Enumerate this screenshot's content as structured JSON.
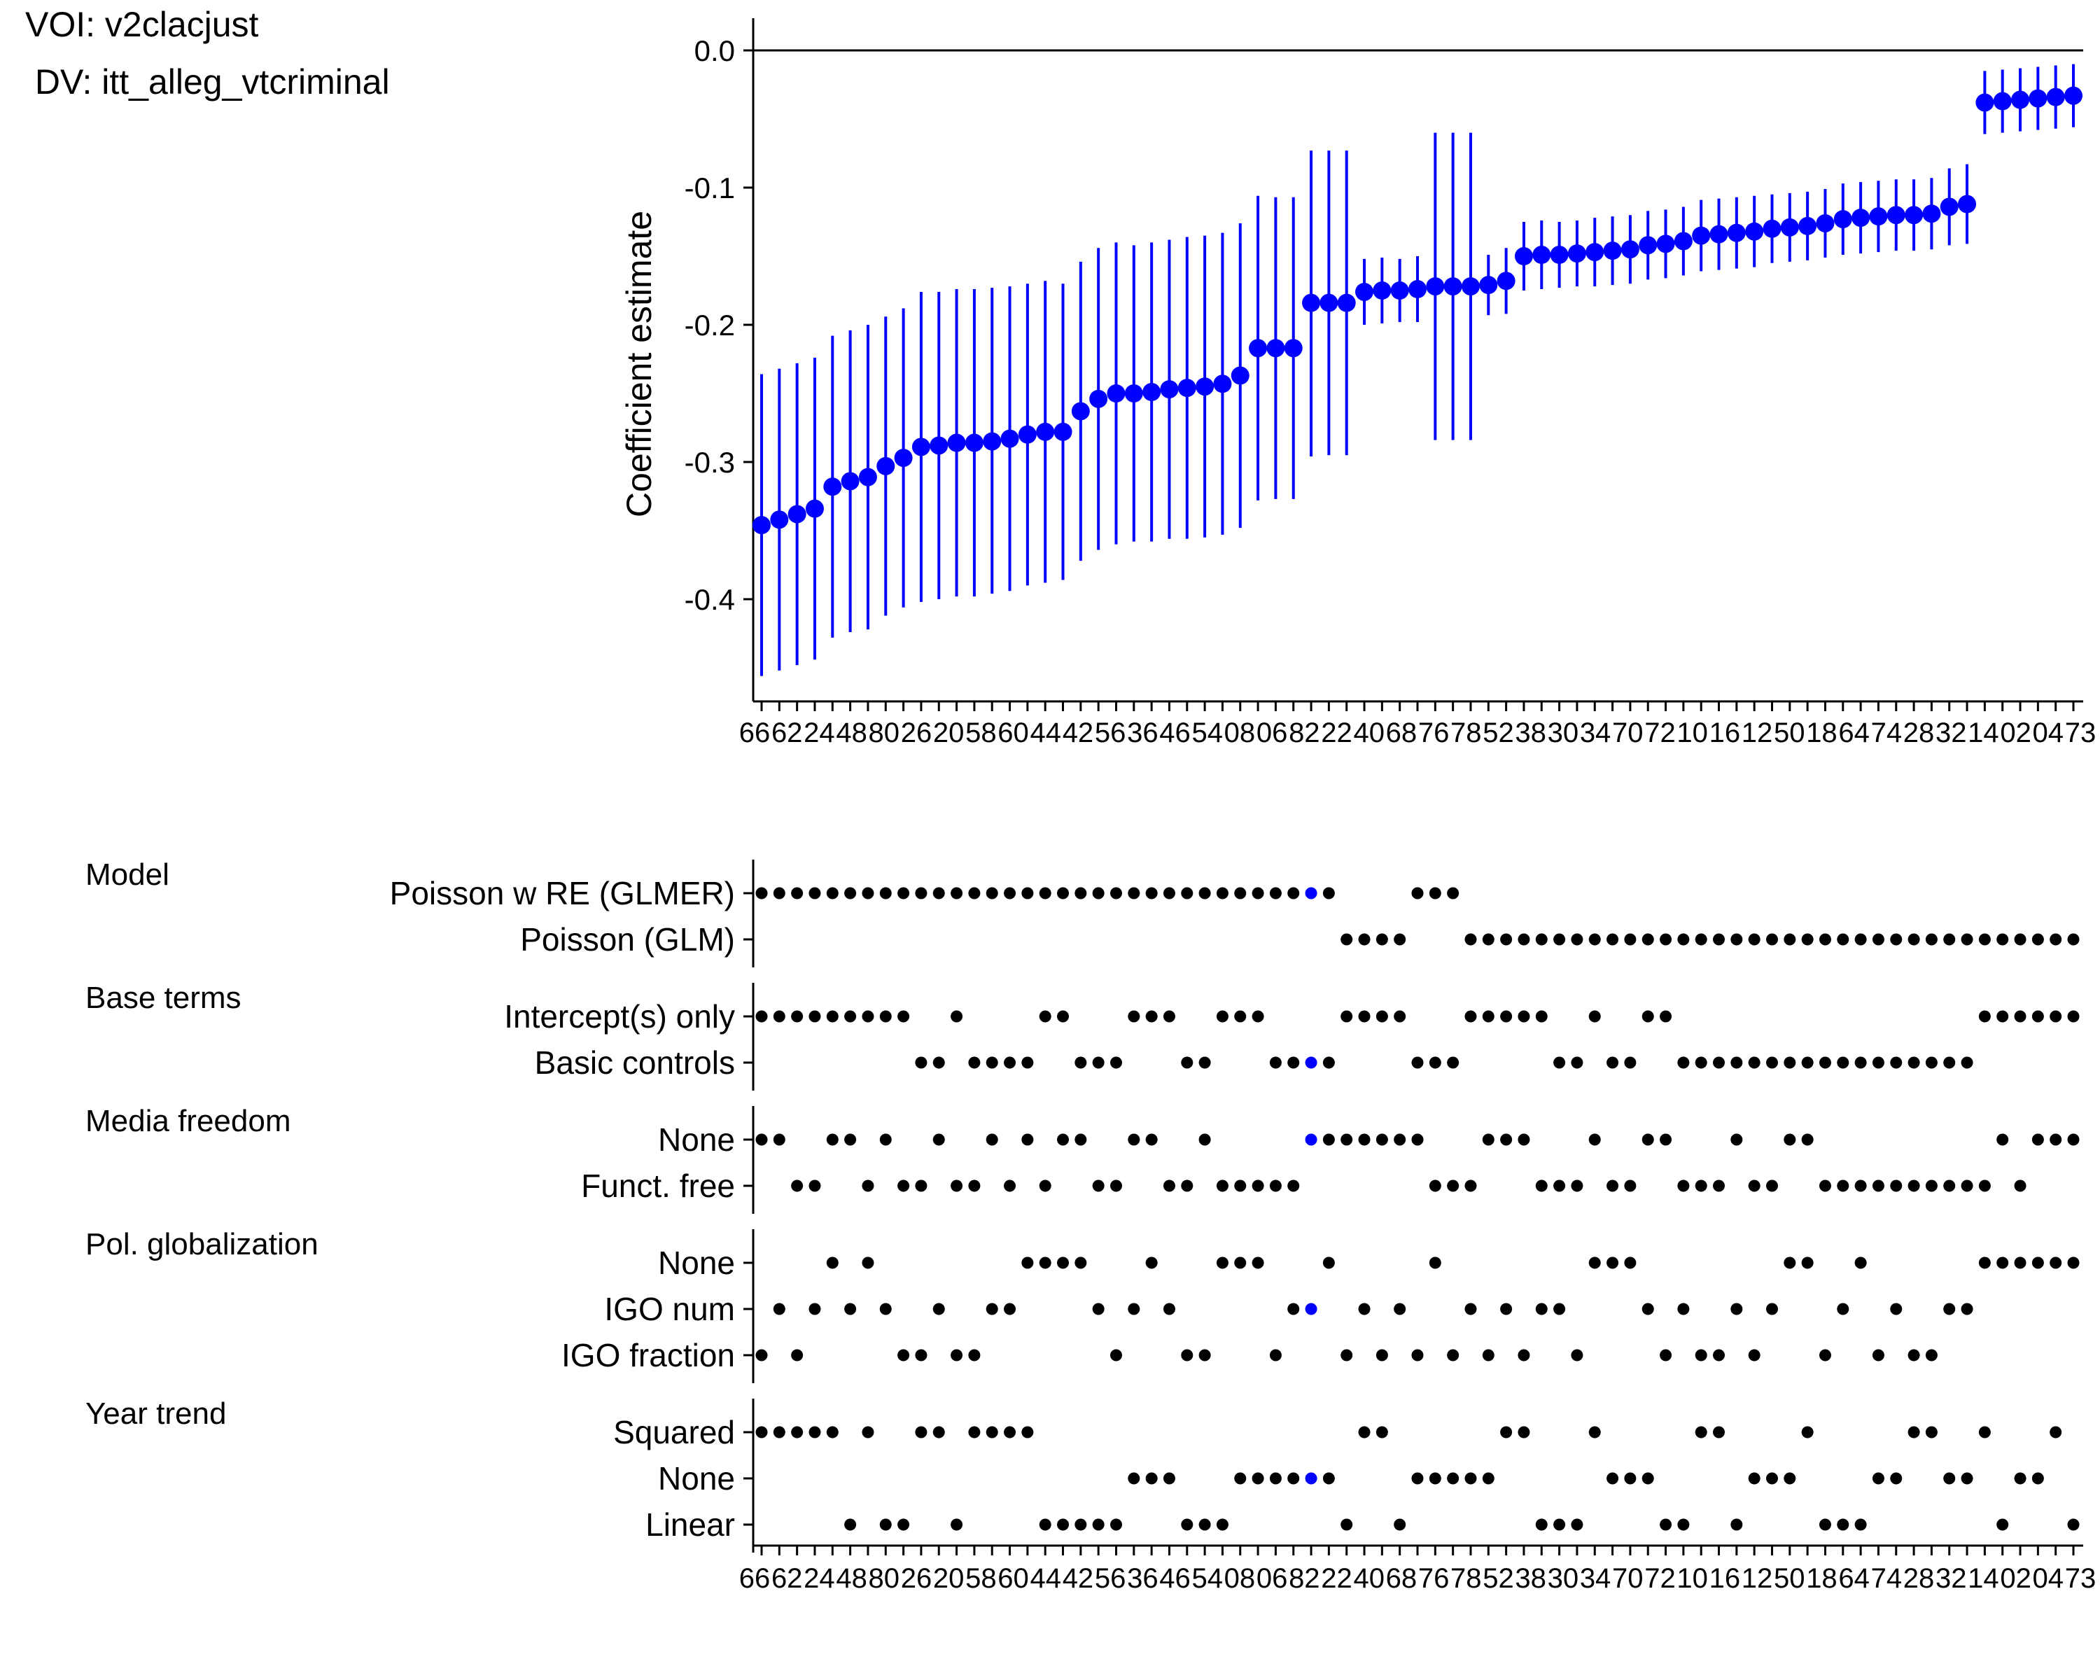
{
  "header": {
    "voi_line": "VOI: v2clacjust",
    "dv_line": " DV: itt_alleg_vtcriminal"
  },
  "colors": {
    "estimate": "#0000ff",
    "indicator": "#000000",
    "highlight": "#0000ff",
    "axis": "#000000"
  },
  "chart_data": [
    {
      "type": "scatter",
      "title": "",
      "xlabel": "",
      "ylabel": "Coefficient estimate",
      "ylim": [
        -0.465,
        0.02
      ],
      "yticks": [
        0.0,
        -0.1,
        -0.2,
        -0.3,
        -0.4
      ],
      "ytick_labels": [
        "0.0",
        "-0.1",
        "-0.2",
        "-0.3",
        "-0.4"
      ],
      "reference_line": 0.0,
      "grid": false,
      "x_ticks_overlapping": true,
      "x_tick_labels": [
        "66",
        "62",
        "24",
        "48",
        "80",
        "26",
        "20",
        "58",
        "60",
        "44",
        "42",
        "56",
        "36",
        "46",
        "54",
        "08",
        "06",
        "82",
        "22",
        "40",
        "68",
        "76",
        "78",
        "52",
        "38",
        "30",
        "34",
        "70",
        "72",
        "10",
        "16",
        "12",
        "50",
        "18",
        "64",
        "74",
        "28",
        "32",
        "14",
        "02",
        "04",
        "73"
      ],
      "estimates": [
        -0.346,
        -0.342,
        -0.338,
        -0.334,
        -0.318,
        -0.314,
        -0.311,
        -0.303,
        -0.297,
        -0.289,
        -0.288,
        -0.286,
        -0.286,
        -0.285,
        -0.283,
        -0.28,
        -0.278,
        -0.278,
        -0.263,
        -0.254,
        -0.25,
        -0.25,
        -0.249,
        -0.247,
        -0.246,
        -0.245,
        -0.243,
        -0.237,
        -0.217,
        -0.217,
        -0.217,
        -0.184,
        -0.184,
        -0.184,
        -0.176,
        -0.175,
        -0.175,
        -0.174,
        -0.172,
        -0.172,
        -0.172,
        -0.171,
        -0.168,
        -0.15,
        -0.149,
        -0.149,
        -0.148,
        -0.147,
        -0.146,
        -0.145,
        -0.142,
        -0.141,
        -0.139,
        -0.135,
        -0.134,
        -0.133,
        -0.132,
        -0.13,
        -0.129,
        -0.128,
        -0.126,
        -0.123,
        -0.122,
        -0.121,
        -0.12,
        -0.12,
        -0.119,
        -0.114,
        -0.112,
        -0.038,
        -0.037,
        -0.036,
        -0.035,
        -0.034,
        -0.033
      ],
      "ci_lower": [
        -0.456,
        -0.452,
        -0.448,
        -0.444,
        -0.428,
        -0.424,
        -0.422,
        -0.412,
        -0.406,
        -0.402,
        -0.4,
        -0.398,
        -0.398,
        -0.396,
        -0.394,
        -0.39,
        -0.388,
        -0.386,
        -0.372,
        -0.364,
        -0.36,
        -0.358,
        -0.358,
        -0.356,
        -0.356,
        -0.355,
        -0.353,
        -0.348,
        -0.328,
        -0.327,
        -0.327,
        -0.296,
        -0.295,
        -0.295,
        -0.2,
        -0.199,
        -0.198,
        -0.198,
        -0.284,
        -0.284,
        -0.284,
        -0.193,
        -0.192,
        -0.175,
        -0.174,
        -0.173,
        -0.172,
        -0.172,
        -0.171,
        -0.17,
        -0.167,
        -0.166,
        -0.164,
        -0.161,
        -0.16,
        -0.159,
        -0.158,
        -0.155,
        -0.154,
        -0.153,
        -0.151,
        -0.149,
        -0.148,
        -0.147,
        -0.146,
        -0.146,
        -0.145,
        -0.142,
        -0.141,
        -0.061,
        -0.06,
        -0.059,
        -0.058,
        -0.057,
        -0.056
      ],
      "ci_upper": [
        -0.236,
        -0.232,
        -0.228,
        -0.224,
        -0.208,
        -0.204,
        -0.2,
        -0.194,
        -0.188,
        -0.176,
        -0.176,
        -0.174,
        -0.174,
        -0.173,
        -0.172,
        -0.17,
        -0.168,
        -0.17,
        -0.154,
        -0.144,
        -0.14,
        -0.142,
        -0.14,
        -0.138,
        -0.136,
        -0.135,
        -0.133,
        -0.126,
        -0.106,
        -0.107,
        -0.107,
        -0.073,
        -0.073,
        -0.073,
        -0.152,
        -0.151,
        -0.152,
        -0.15,
        -0.06,
        -0.06,
        -0.06,
        -0.149,
        -0.144,
        -0.125,
        -0.124,
        -0.125,
        -0.124,
        -0.122,
        -0.121,
        -0.12,
        -0.117,
        -0.116,
        -0.114,
        -0.109,
        -0.108,
        -0.107,
        -0.106,
        -0.105,
        -0.104,
        -0.103,
        -0.101,
        -0.097,
        -0.096,
        -0.095,
        -0.094,
        -0.094,
        -0.093,
        -0.086,
        -0.083,
        -0.015,
        -0.014,
        -0.013,
        -0.012,
        -0.011,
        -0.01
      ]
    },
    {
      "type": "scatter",
      "title": "",
      "kind": "specification-indicator",
      "highlight_index": 31,
      "x_ticks_overlapping": true,
      "groups": [
        {
          "name": "Model",
          "rows": [
            "Poisson w RE (GLMER)",
            "Poisson (GLM)"
          ],
          "assignment": [
            0,
            0,
            0,
            0,
            0,
            0,
            0,
            0,
            0,
            0,
            0,
            0,
            0,
            0,
            0,
            0,
            0,
            0,
            0,
            0,
            0,
            0,
            0,
            0,
            0,
            0,
            0,
            0,
            0,
            0,
            0,
            0,
            0,
            1,
            1,
            1,
            1,
            0,
            0,
            0,
            1,
            1,
            1,
            1,
            1,
            1,
            1,
            1,
            1,
            1,
            1,
            1,
            1,
            1,
            1,
            1,
            1,
            1,
            1,
            1,
            1,
            1,
            1,
            1,
            1,
            1,
            1,
            1,
            1,
            1,
            1,
            1,
            1,
            1,
            1
          ]
        },
        {
          "name": "Base terms",
          "rows": [
            "Intercept(s) only",
            "Basic controls"
          ],
          "assignment": [
            0,
            0,
            0,
            0,
            0,
            0,
            0,
            0,
            0,
            1,
            1,
            0,
            1,
            1,
            1,
            1,
            0,
            0,
            1,
            1,
            1,
            0,
            0,
            0,
            1,
            1,
            0,
            0,
            0,
            1,
            1,
            1,
            1,
            0,
            0,
            0,
            0,
            1,
            1,
            1,
            0,
            0,
            0,
            0,
            0,
            1,
            1,
            0,
            1,
            1,
            0,
            0,
            1,
            1,
            1,
            1,
            1,
            1,
            1,
            1,
            1,
            1,
            1,
            1,
            1,
            1,
            1,
            1,
            1,
            0,
            0,
            0,
            0,
            0,
            0
          ]
        },
        {
          "name": "Media freedom",
          "rows": [
            "None",
            "Funct. free"
          ],
          "assignment": [
            0,
            0,
            1,
            1,
            0,
            0,
            1,
            0,
            1,
            1,
            0,
            1,
            1,
            0,
            1,
            0,
            1,
            0,
            0,
            1,
            1,
            0,
            0,
            1,
            1,
            0,
            1,
            1,
            1,
            1,
            1,
            0,
            0,
            0,
            0,
            0,
            0,
            0,
            1,
            1,
            1,
            0,
            0,
            0,
            1,
            1,
            1,
            0,
            1,
            1,
            0,
            0,
            1,
            1,
            1,
            0,
            1,
            1,
            0,
            0,
            1,
            1,
            1,
            1,
            1,
            1,
            1,
            1,
            1,
            1,
            0,
            1,
            0,
            0,
            0
          ]
        },
        {
          "name": "Pol. globalization",
          "rows": [
            "None",
            "IGO num",
            "IGO fraction"
          ],
          "assignment": [
            2,
            1,
            2,
            1,
            0,
            1,
            0,
            1,
            2,
            2,
            1,
            2,
            2,
            1,
            1,
            0,
            0,
            0,
            0,
            1,
            2,
            1,
            0,
            1,
            2,
            2,
            0,
            0,
            0,
            2,
            1,
            1,
            0,
            2,
            1,
            2,
            1,
            2,
            0,
            2,
            1,
            2,
            1,
            2,
            1,
            1,
            2,
            0,
            0,
            0,
            1,
            2,
            1,
            2,
            2,
            1,
            2,
            1,
            0,
            0,
            2,
            1,
            0,
            2,
            1,
            2,
            2,
            1,
            1,
            0,
            0,
            0,
            0,
            0,
            0
          ]
        },
        {
          "name": "Year trend",
          "rows": [
            "Squared",
            "None",
            "Linear"
          ],
          "assignment": [
            0,
            0,
            0,
            0,
            0,
            2,
            0,
            2,
            2,
            0,
            0,
            2,
            0,
            0,
            0,
            0,
            2,
            2,
            2,
            2,
            2,
            1,
            1,
            1,
            2,
            2,
            2,
            1,
            1,
            1,
            1,
            1,
            1,
            2,
            0,
            0,
            2,
            1,
            1,
            1,
            1,
            1,
            0,
            0,
            2,
            2,
            2,
            0,
            1,
            1,
            1,
            2,
            2,
            0,
            0,
            2,
            1,
            1,
            1,
            0,
            2,
            2,
            2,
            1,
            1,
            0,
            0,
            1,
            1,
            0,
            2,
            1,
            1,
            0,
            2
          ]
        }
      ]
    }
  ]
}
